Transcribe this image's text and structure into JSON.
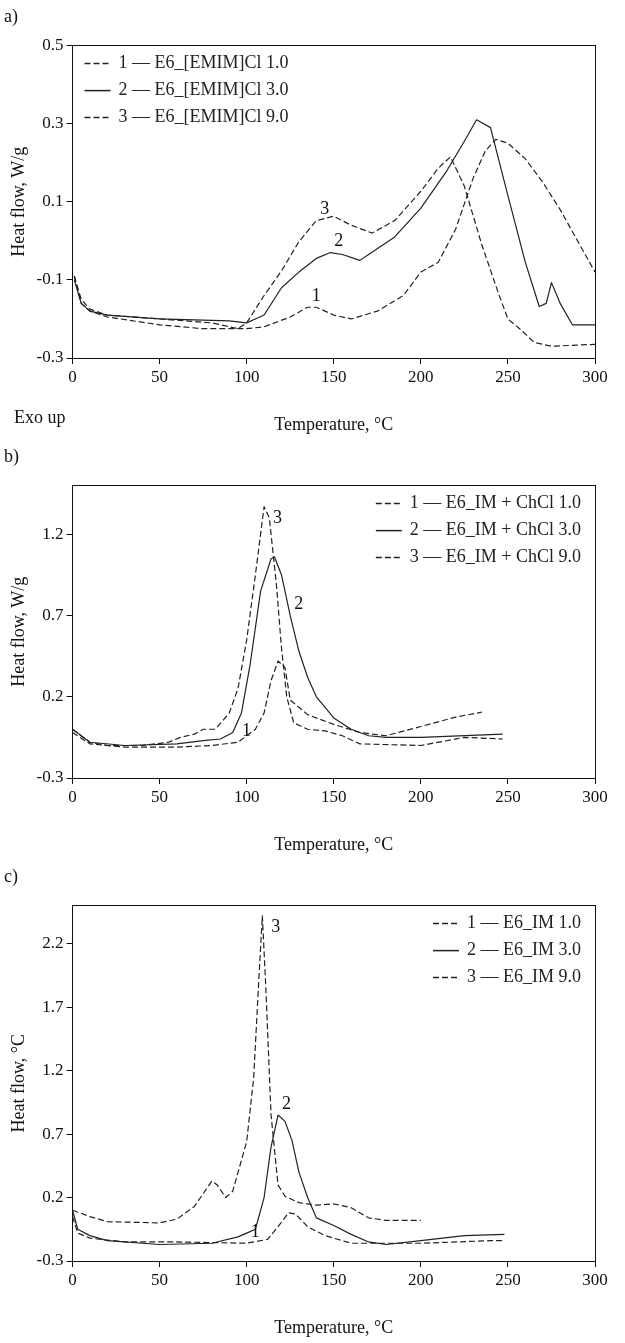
{
  "chart_data": [
    {
      "type": "line",
      "title": "a)",
      "xlabel": "Temperature, °C",
      "ylabel": "Heat flow, W/g",
      "xlim": [
        0,
        300
      ],
      "xticks": [
        0,
        50,
        100,
        150,
        200,
        250,
        300
      ],
      "ylim": [
        -0.3,
        0.5
      ],
      "yticks": [
        -0.3,
        -0.1,
        0.1,
        0.3,
        0.5
      ],
      "grid": false,
      "legend": "top left",
      "marker": "none",
      "annotations": [
        "Exo up",
        {
          "text": "1",
          "x": 135,
          "y": -0.17
        },
        {
          "text": "2",
          "x": 148,
          "y": -0.03
        },
        {
          "text": "3",
          "x": 140,
          "y": 0.052
        }
      ],
      "series": [
        {
          "name": "1 — E6_[EMIM]Cl 1.0",
          "color": "#222222",
          "line_style": "dashed",
          "x": [
            1,
            5,
            10,
            20,
            50,
            75,
            100,
            110,
            125,
            135,
            140,
            150,
            160,
            175,
            190,
            200,
            210,
            220,
            230,
            237,
            243,
            250,
            260,
            270,
            280,
            290,
            300
          ],
          "values": [
            -0.09,
            -0.16,
            -0.18,
            -0.195,
            -0.215,
            -0.225,
            -0.225,
            -0.22,
            -0.195,
            -0.17,
            -0.17,
            -0.19,
            -0.2,
            -0.18,
            -0.14,
            -0.08,
            -0.055,
            0.03,
            0.16,
            0.23,
            0.26,
            0.25,
            0.21,
            0.15,
            0.08,
            0.0,
            -0.08
          ]
        },
        {
          "name": "2 — E6_[EMIM]Cl 3.0",
          "color": "#222222",
          "line_style": "solid",
          "x": [
            1,
            5,
            10,
            20,
            50,
            90,
            100,
            110,
            120,
            130,
            140,
            148,
            155,
            165,
            185,
            200,
            215,
            225,
            232,
            240,
            250,
            260,
            268,
            272,
            275,
            280,
            287,
            300
          ],
          "values": [
            -0.1,
            -0.16,
            -0.18,
            -0.19,
            -0.2,
            -0.205,
            -0.21,
            -0.19,
            -0.12,
            -0.08,
            -0.045,
            -0.03,
            -0.035,
            -0.05,
            0.01,
            0.084,
            0.18,
            0.255,
            0.31,
            0.29,
            0.116,
            -0.055,
            -0.168,
            -0.16,
            -0.107,
            -0.16,
            -0.215,
            -0.215
          ]
        },
        {
          "name": "3 — E6_[EMIM]Cl 9.0",
          "color": "#222222",
          "line_style": "dashed",
          "x": [
            1,
            5,
            10,
            20,
            50,
            80,
            95,
            100,
            110,
            120,
            130,
            140,
            150,
            160,
            172,
            185,
            200,
            210,
            217,
            225,
            235,
            245,
            250,
            258,
            265,
            275,
            300
          ],
          "values": [
            -0.09,
            -0.15,
            -0.175,
            -0.19,
            -0.2,
            -0.21,
            -0.225,
            -0.21,
            -0.14,
            -0.077,
            -0.002,
            0.052,
            0.063,
            0.04,
            0.02,
            0.052,
            0.127,
            0.186,
            0.215,
            0.14,
            -0.01,
            -0.14,
            -0.2,
            -0.23,
            -0.26,
            -0.27,
            -0.265
          ]
        }
      ]
    },
    {
      "type": "line",
      "title": "b)",
      "xlabel": "Temperature, °C",
      "ylabel": "Heat flow, W/g",
      "xlim": [
        0,
        300
      ],
      "xticks": [
        0,
        50,
        100,
        150,
        200,
        250,
        300
      ],
      "ylim": [
        -0.3,
        1.5
      ],
      "yticks": [
        -0.3,
        0.2,
        0.7,
        1.2
      ],
      "grid": false,
      "legend": "top right",
      "marker": "none",
      "annotations": [
        {
          "text": "1",
          "x": 95,
          "y": -0.08
        },
        {
          "text": "2",
          "x": 125,
          "y": 0.7
        },
        {
          "text": "3",
          "x": 110,
          "y": 1.37
        }
      ],
      "series": [
        {
          "name": "1 — E6_IM + ChCl 1.0",
          "color": "#222222",
          "line_style": "dashed",
          "x": [
            0,
            10,
            30,
            60,
            80,
            95,
            105,
            110,
            114,
            118,
            122,
            125,
            135,
            150,
            165,
            180,
            200,
            220,
            235
          ],
          "values": [
            -0.02,
            -0.09,
            -0.11,
            -0.11,
            -0.1,
            -0.08,
            0.0,
            0.1,
            0.3,
            0.42,
            0.38,
            0.18,
            0.09,
            0.03,
            -0.02,
            -0.04,
            0.017,
            0.075,
            0.105
          ]
        },
        {
          "name": "2 — E6_IM + ChCl 3.0",
          "color": "#222222",
          "line_style": "solid",
          "x": [
            0,
            10,
            30,
            60,
            75,
            85,
            92,
            97,
            102,
            108,
            114,
            116,
            120,
            125,
            130,
            135,
            140,
            150,
            160,
            170,
            180,
            200,
            247
          ],
          "values": [
            0.0,
            -0.08,
            -0.1,
            -0.09,
            -0.07,
            -0.06,
            -0.02,
            0.1,
            0.4,
            0.85,
            1.05,
            1.06,
            0.95,
            0.7,
            0.48,
            0.32,
            0.2,
            0.07,
            0.0,
            -0.04,
            -0.05,
            -0.05,
            -0.03
          ]
        },
        {
          "name": "3 — E6_IM + ChCl 9.0",
          "color": "#222222",
          "line_style": "dashed",
          "x": [
            0,
            10,
            20,
            40,
            55,
            62,
            70,
            75,
            82,
            90,
            95,
            100,
            105,
            110,
            113,
            117,
            120,
            123,
            127,
            135,
            145,
            155,
            165,
            200,
            225,
            247
          ],
          "values": [
            0.0,
            -0.08,
            -0.1,
            -0.1,
            -0.08,
            -0.05,
            -0.03,
            0.0,
            0.0,
            0.1,
            0.25,
            0.55,
            0.95,
            1.37,
            1.3,
            0.9,
            0.5,
            0.2,
            0.04,
            0.0,
            -0.01,
            -0.04,
            -0.09,
            -0.1,
            -0.05,
            -0.06
          ]
        }
      ]
    },
    {
      "type": "line",
      "title": "c)",
      "xlabel": "Temperature, °C",
      "ylabel": "Heat flow, °C",
      "xlim": [
        0,
        300
      ],
      "xticks": [
        0,
        50,
        100,
        150,
        200,
        250,
        300
      ],
      "ylim": [
        -0.3,
        2.5
      ],
      "yticks": [
        -0.3,
        0.2,
        0.7,
        1.2,
        1.7,
        2.2
      ],
      "grid": false,
      "legend": "top right",
      "marker": "none",
      "annotations": [
        {
          "text": "1",
          "x": 100,
          "y": -0.16
        },
        {
          "text": "2",
          "x": 118,
          "y": 0.85
        },
        {
          "text": "3",
          "x": 109,
          "y": 2.42
        }
      ],
      "series": [
        {
          "name": "1 — E6_IM 1.0",
          "color": "#222222",
          "line_style": "dashed",
          "x": [
            0,
            3,
            10,
            30,
            60,
            100,
            112,
            118,
            124,
            128,
            135,
            145,
            160,
            200,
            240,
            248
          ],
          "values": [
            0.05,
            -0.08,
            -0.12,
            -0.15,
            -0.15,
            -0.16,
            -0.13,
            -0.03,
            0.08,
            0.07,
            -0.03,
            -0.1,
            -0.16,
            -0.16,
            -0.14,
            -0.14
          ]
        },
        {
          "name": "2 — E6_IM 3.0",
          "color": "#222222",
          "line_style": "solid",
          "x": [
            0,
            3,
            10,
            20,
            50,
            80,
            95,
            100,
            105,
            110,
            114,
            118,
            122,
            126,
            130,
            135,
            140,
            150,
            160,
            170,
            180,
            200,
            225,
            248
          ],
          "values": [
            0.1,
            -0.05,
            -0.1,
            -0.14,
            -0.17,
            -0.16,
            -0.11,
            -0.08,
            -0.05,
            0.2,
            0.6,
            0.85,
            0.8,
            0.65,
            0.4,
            0.2,
            0.04,
            -0.02,
            -0.09,
            -0.15,
            -0.17,
            -0.14,
            -0.1,
            -0.09
          ]
        },
        {
          "name": "3 — E6_IM 9.0",
          "color": "#222222",
          "line_style": "dashed",
          "x": [
            0,
            10,
            20,
            50,
            60,
            70,
            80,
            83,
            88,
            92,
            100,
            104,
            107,
            109,
            111,
            114,
            118,
            122,
            130,
            140,
            150,
            160,
            170,
            180,
            200
          ],
          "values": [
            0.1,
            0.05,
            0.01,
            0.0,
            0.03,
            0.13,
            0.33,
            0.3,
            0.2,
            0.25,
            0.64,
            1.14,
            1.92,
            2.42,
            1.85,
            0.85,
            0.3,
            0.21,
            0.16,
            0.14,
            0.15,
            0.12,
            0.04,
            0.02,
            0.02
          ]
        }
      ]
    }
  ]
}
